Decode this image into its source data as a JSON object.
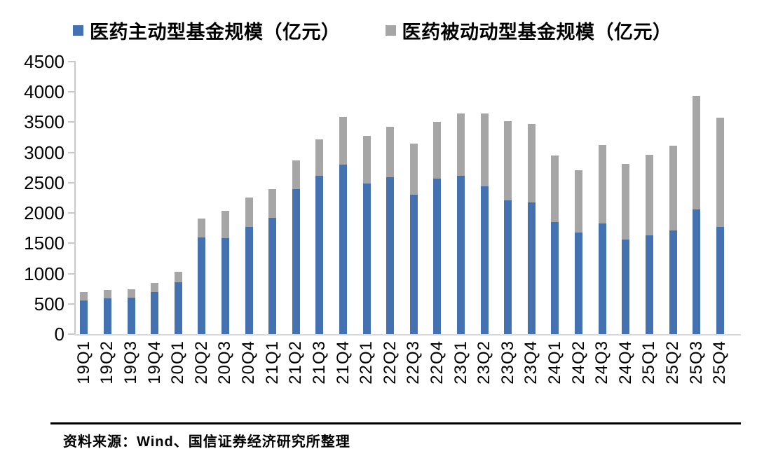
{
  "chart_data": {
    "type": "bar",
    "stacked": true,
    "title": "",
    "xlabel": "",
    "ylabel": "",
    "ylim": [
      0,
      4500
    ],
    "ytick_step": 500,
    "yticks": [
      4500,
      4000,
      3500,
      3000,
      2500,
      2000,
      1500,
      1000,
      500,
      0
    ],
    "grid": false,
    "legend_position": "top",
    "categories": [
      "19Q1",
      "19Q2",
      "19Q3",
      "19Q4",
      "20Q1",
      "20Q2",
      "20Q3",
      "20Q4",
      "21Q1",
      "21Q2",
      "21Q3",
      "21Q4",
      "22Q1",
      "22Q2",
      "22Q3",
      "22Q4",
      "23Q1",
      "23Q2",
      "23Q3",
      "23Q4",
      "24Q1",
      "24Q2",
      "24Q3",
      "24Q4",
      "25Q1",
      "25Q2",
      "25Q3",
      "25Q4"
    ],
    "series": [
      {
        "name": "医药主动型基金规模（亿元）",
        "color": "#4472b0",
        "values": [
          555,
          585,
          600,
          690,
          855,
          1600,
          1580,
          1775,
          1925,
          2390,
          2610,
          2800,
          2490,
          2590,
          2300,
          2570,
          2620,
          2440,
          2210,
          2170,
          1850,
          1680,
          1830,
          1560,
          1630,
          1710,
          2060,
          1770
        ]
      },
      {
        "name": "医药被动动型基金规模（亿元）",
        "color": "#a6a6a6",
        "values": [
          135,
          140,
          140,
          150,
          175,
          305,
          460,
          480,
          465,
          480,
          610,
          790,
          780,
          830,
          850,
          940,
          1020,
          1200,
          1310,
          1300,
          1100,
          1030,
          1290,
          1250,
          1330,
          1400,
          1870,
          1810
        ]
      }
    ]
  },
  "footer": {
    "source_text": "资料来源：Wind、国信证券经济研究所整理"
  },
  "colors": {
    "active_series": "#4472b0",
    "passive_series": "#a6a6a6",
    "axis_line": "#c9c9c9",
    "baseline": "#d9d9d9",
    "text": "#000000",
    "separator": "#000000"
  }
}
